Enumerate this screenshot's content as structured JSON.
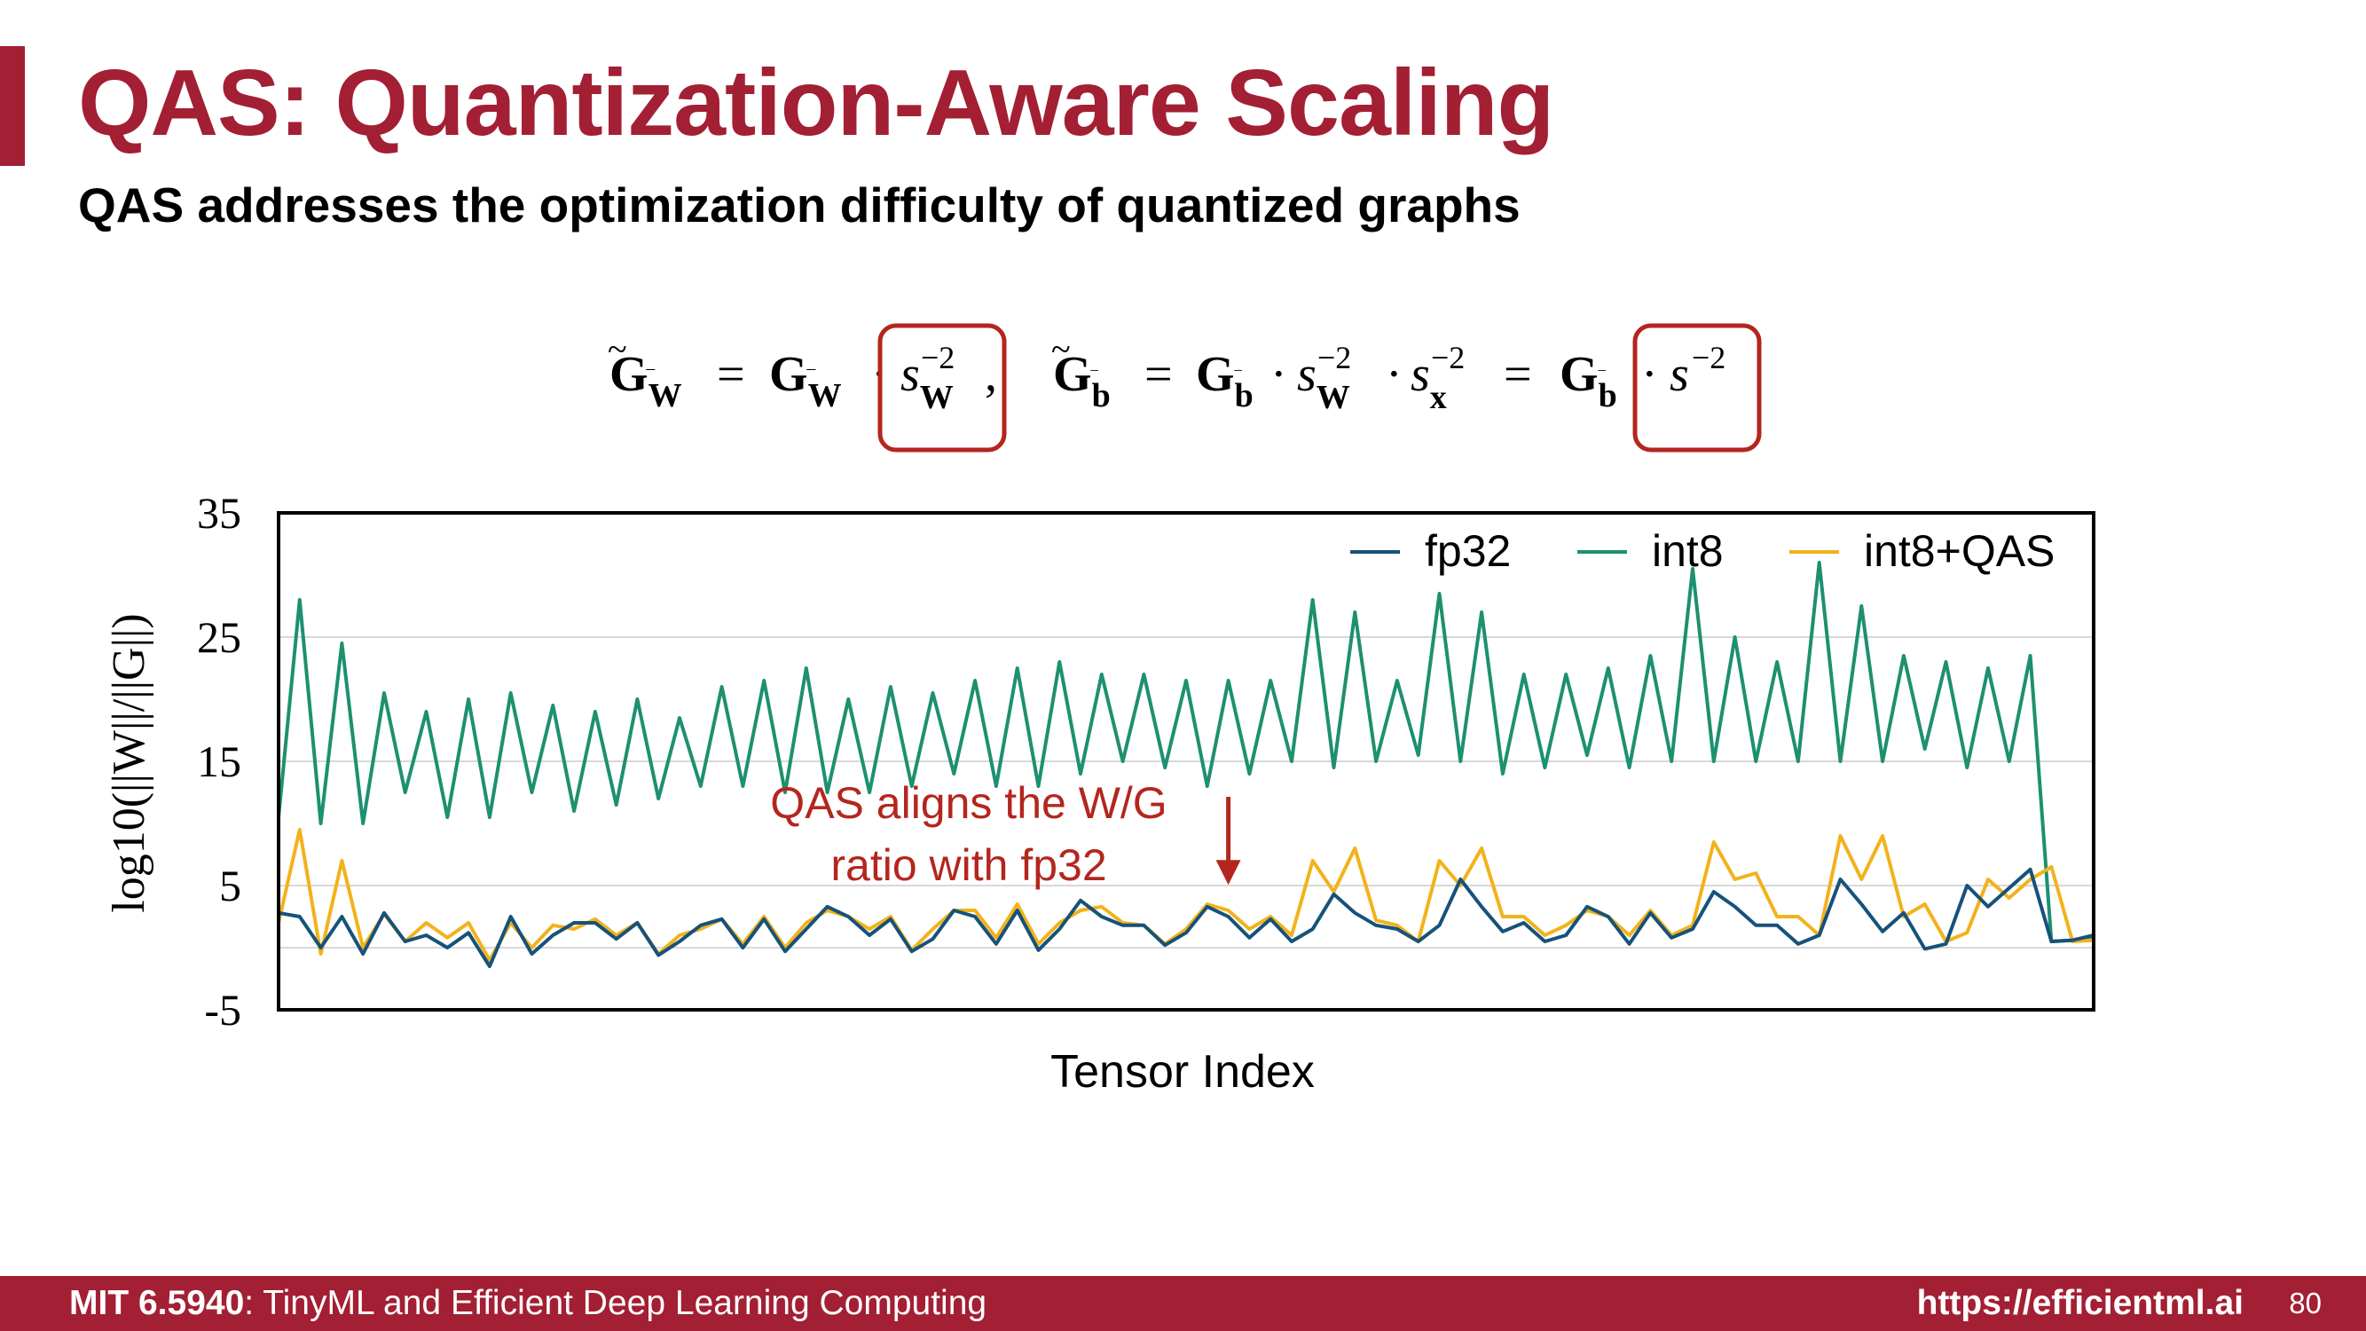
{
  "slide": {
    "title": "QAS: Quantization-Aware Scaling",
    "subtitle": "QAS addresses the optimization difficulty of quantized graphs",
    "formula": {
      "w_lhs_base": "G",
      "w_lhs_sub": "W",
      "w_rhs_base": "G",
      "w_rhs_sub": "W",
      "w_scale_base": "s",
      "w_scale_sub": "W",
      "exponent": "−2",
      "b_lhs_base": "G",
      "b_lhs_sub": "b",
      "b_rhs_base": "G",
      "b_rhs_sub": "b",
      "b_scale_w_base": "s",
      "b_scale_w_sub": "W",
      "b_scale_x_base": "s",
      "b_scale_x_sub": "x",
      "b_final_base": "G",
      "b_final_sub": "b",
      "b_final_scale": "s"
    },
    "footer": {
      "course_code": "MIT 6.5940",
      "course_name": ": TinyML and Efficient Deep Learning Computing",
      "url": "https://efficientml.ai",
      "page_number": "80"
    }
  },
  "chart_data": {
    "type": "line",
    "title": "",
    "xlabel": "Tensor Index",
    "ylabel": "log10(||W||/||G||)",
    "ylim": [
      -5,
      35
    ],
    "yticks": [
      "-5",
      "5",
      "15",
      "25",
      "35"
    ],
    "grid": true,
    "legend_position": "top-right",
    "x": [
      0,
      1,
      2,
      3,
      4,
      5,
      6,
      7,
      8,
      9,
      10,
      11,
      12,
      13,
      14,
      15,
      16,
      17,
      18,
      19,
      20,
      21,
      22,
      23,
      24,
      25,
      26,
      27,
      28,
      29,
      30,
      31,
      32,
      33,
      34,
      35,
      36,
      37,
      38,
      39,
      40,
      41,
      42,
      43,
      44,
      45,
      46,
      47,
      48,
      49,
      50,
      51,
      52,
      53,
      54,
      55,
      56,
      57,
      58,
      59,
      60,
      61,
      62,
      63,
      64,
      65,
      66,
      67,
      68,
      69,
      70,
      71,
      72,
      73,
      74,
      75,
      76,
      77,
      78,
      79,
      80,
      81,
      82,
      83,
      84,
      85,
      86
    ],
    "series": [
      {
        "name": "fp32",
        "color": "#16527a",
        "values": [
          2.8,
          2.5,
          0,
          2.5,
          -0.5,
          2.8,
          0.5,
          1,
          0,
          1.2,
          -1.5,
          2.5,
          -0.5,
          1,
          2,
          2,
          0.7,
          2,
          -0.6,
          0.5,
          1.8,
          2.3,
          0,
          2.3,
          -0.3,
          1.5,
          3.3,
          2.5,
          1,
          2.3,
          -0.3,
          0.7,
          3,
          2.5,
          0.3,
          3,
          -0.2,
          1.5,
          3.8,
          2.5,
          1.8,
          1.8,
          0.2,
          1.2,
          3.3,
          2.5,
          0.8,
          2.3,
          0.5,
          1.5,
          4.3,
          2.8,
          1.8,
          1.5,
          0.5,
          1.8,
          5.5,
          3.3,
          1.3,
          2,
          0.5,
          1,
          3.3,
          2.5,
          0.3,
          2.8,
          0.8,
          1.5,
          4.5,
          3.3,
          1.8,
          1.8,
          0.3,
          1,
          5.5,
          3.5,
          1.3,
          2.8,
          -0.1,
          0.3,
          5,
          3.3,
          4.8,
          6.3,
          0.5,
          0.6,
          1
        ]
      },
      {
        "name": "int8",
        "color": "#1d9070",
        "values": [
          10.5,
          28,
          10,
          24.5,
          10,
          20.5,
          12.5,
          19,
          10.5,
          20,
          10.5,
          20.5,
          12.5,
          19.5,
          11,
          19,
          11.5,
          20,
          12,
          18.5,
          13,
          21,
          13,
          21.5,
          12.5,
          22.5,
          12.5,
          20,
          12.5,
          21,
          13,
          20.5,
          14,
          21.5,
          13,
          22.5,
          13,
          23,
          14,
          22,
          15,
          22,
          14.5,
          21.5,
          13,
          21.5,
          14,
          21.5,
          15,
          28,
          14.5,
          27,
          15,
          21.5,
          15.5,
          28.5,
          15,
          27,
          14,
          22,
          14.5,
          22,
          15.5,
          22.5,
          14.5,
          23.5,
          15,
          30.5,
          15,
          25,
          15,
          23,
          15,
          31,
          15,
          27.5,
          15,
          23.5,
          16,
          23,
          14.5,
          22.5,
          15,
          23.5,
          0.5,
          0.6,
          0.8
        ]
      },
      {
        "name": "int8+QAS",
        "color": "#f2b21c",
        "values": [
          2,
          9.5,
          -0.5,
          7,
          0,
          2.7,
          0.5,
          2,
          0.8,
          2,
          -1,
          2,
          0,
          1.8,
          1.5,
          2.3,
          1,
          2,
          -0.5,
          1,
          1.5,
          2.3,
          0.3,
          2.5,
          0,
          2,
          3,
          2.5,
          1.5,
          2.5,
          -0.2,
          1.5,
          3,
          3,
          0.8,
          3.5,
          0.3,
          2,
          3,
          3.3,
          2,
          1.8,
          0.3,
          1.5,
          3.5,
          3,
          1.5,
          2.5,
          1,
          7,
          4.5,
          8,
          2.2,
          1.8,
          0.5,
          7,
          5,
          8,
          2.5,
          2.5,
          1,
          1.8,
          3,
          2.5,
          1,
          3,
          1,
          1.8,
          8.5,
          5.5,
          6,
          2.5,
          2.5,
          1,
          9,
          5.5,
          9,
          2.5,
          3.5,
          0.5,
          1.2,
          5.5,
          4,
          5.5,
          6.5,
          0.5,
          0.6
        ]
      }
    ],
    "annotations": [
      {
        "text_line1": "QAS aligns the W/G",
        "text_line2": "ratio with fp32",
        "color": "#b3261e",
        "arrow_x": 45,
        "arrow_y": 5.2
      }
    ]
  }
}
